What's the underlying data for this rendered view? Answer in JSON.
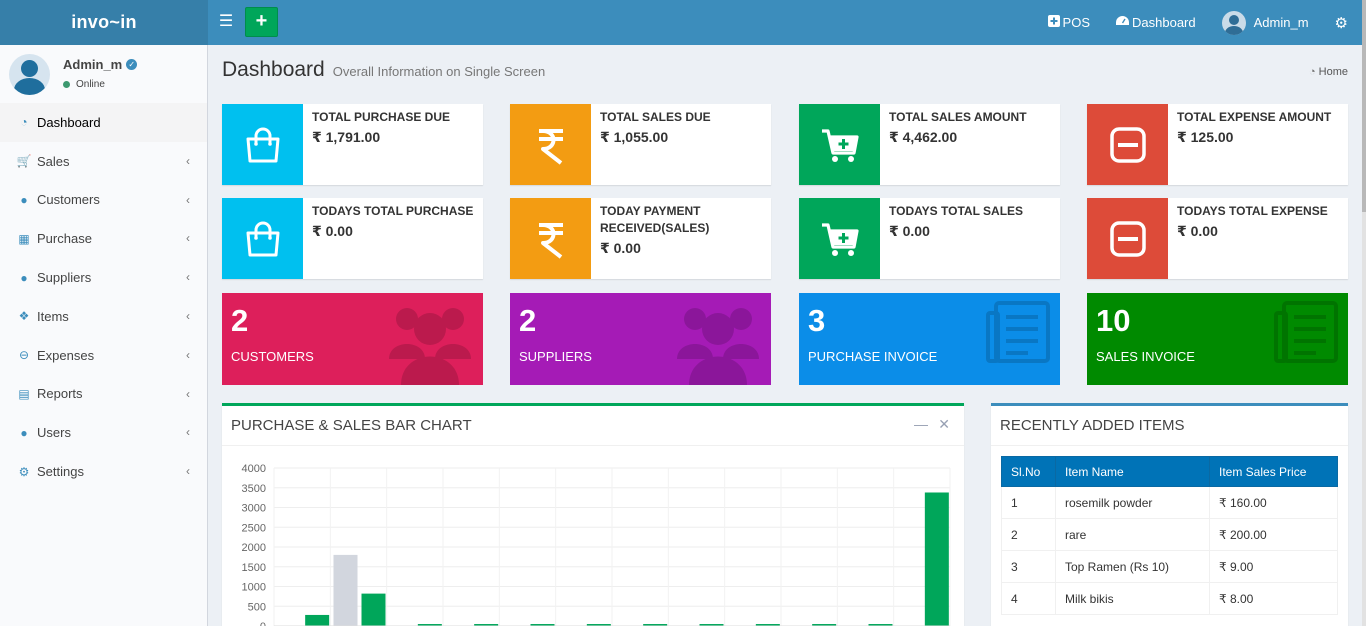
{
  "app": {
    "logo": "invo~in"
  },
  "navbar": {
    "pos_label": "POS",
    "dashboard_label": "Dashboard",
    "user_name": "Admin_m"
  },
  "sidebar": {
    "user_name": "Admin_m",
    "user_status": "Online",
    "items": [
      {
        "label": "Dashboard",
        "icon": "dashboard-icon",
        "active": true
      },
      {
        "label": "Sales",
        "icon": "cart-icon"
      },
      {
        "label": "Customers",
        "icon": "users-icon"
      },
      {
        "label": "Purchase",
        "icon": "grid-icon"
      },
      {
        "label": "Suppliers",
        "icon": "user-plus-icon"
      },
      {
        "label": "Items",
        "icon": "cubes-icon"
      },
      {
        "label": "Expenses",
        "icon": "minus-circle-icon"
      },
      {
        "label": "Reports",
        "icon": "bar-chart-icon"
      },
      {
        "label": "Users",
        "icon": "users-icon"
      },
      {
        "label": "Settings",
        "icon": "gears-icon"
      }
    ]
  },
  "header": {
    "title": "Dashboard",
    "subtitle": "Overall Information on Single Screen",
    "breadcrumb": "Home"
  },
  "info_boxes": [
    {
      "label": "TOTAL PURCHASE DUE",
      "value": "₹ 1,791.00",
      "color": "#00c0ef",
      "icon": "shopping-bag-icon"
    },
    {
      "label": "TOTAL SALES DUE",
      "value": "₹ 1,055.00",
      "color": "#f39c12",
      "icon": "rupee-icon"
    },
    {
      "label": "TOTAL SALES AMOUNT",
      "value": "₹ 4,462.00",
      "color": "#00a65a",
      "icon": "cart-plus-icon"
    },
    {
      "label": "TOTAL EXPENSE AMOUNT",
      "value": "₹ 125.00",
      "color": "#dd4b39",
      "icon": "minus-square-icon"
    },
    {
      "label": "TODAYS TOTAL PURCHASE",
      "value": "₹ 0.00",
      "color": "#00c0ef",
      "icon": "shopping-bag-icon"
    },
    {
      "label": "TODAY PAYMENT RECEIVED(SALES)",
      "value": "₹ 0.00",
      "color": "#f39c12",
      "icon": "rupee-icon"
    },
    {
      "label": "TODAYS TOTAL SALES",
      "value": "₹ 0.00",
      "color": "#00a65a",
      "icon": "cart-plus-icon"
    },
    {
      "label": "TODAYS TOTAL EXPENSE",
      "value": "₹ 0.00",
      "color": "#dd4b39",
      "icon": "minus-square-icon"
    }
  ],
  "small_boxes": [
    {
      "number": "2",
      "label": "CUSTOMERS",
      "color": "#dd1f5b",
      "icon": "users-icon"
    },
    {
      "number": "2",
      "label": "SUPPLIERS",
      "color": "#a51bb6",
      "icon": "users-icon"
    },
    {
      "number": "3",
      "label": "PURCHASE INVOICE",
      "color": "#0b8de8",
      "icon": "document-icon"
    },
    {
      "number": "10",
      "label": "SALES INVOICE",
      "color": "#008a00",
      "icon": "document-icon"
    }
  ],
  "chart_panel": {
    "title": "PURCHASE & SALES BAR CHART"
  },
  "chart_data": {
    "type": "bar",
    "title": "PURCHASE & SALES BAR CHART",
    "ylim": [
      0,
      4000
    ],
    "yticks": [
      0,
      500,
      1000,
      1500,
      2000,
      2500,
      3000,
      3500,
      4000
    ],
    "grid": true,
    "categories": [
      "",
      "",
      "",
      "",
      "",
      "",
      "",
      "",
      "",
      "",
      "",
      ""
    ],
    "series": [
      {
        "color": "#d2d6de",
        "values": [
          0,
          1800,
          10,
          10,
          10,
          10,
          10,
          10,
          10,
          10,
          10,
          10
        ]
      },
      {
        "color": "#00a65a",
        "values": [
          280,
          820,
          50,
          50,
          50,
          50,
          50,
          50,
          50,
          50,
          50,
          3380
        ]
      }
    ]
  },
  "items_panel": {
    "title": "RECENTLY ADDED ITEMS",
    "columns": [
      "Sl.No",
      "Item Name",
      "Item Sales Price"
    ],
    "rows": [
      [
        "1",
        "rosemilk powder",
        "₹ 160.00"
      ],
      [
        "2",
        "rare",
        "₹ 200.00"
      ],
      [
        "3",
        "Top Ramen (Rs 10)",
        "₹ 9.00"
      ],
      [
        "4",
        "Milk bikis",
        "₹ 8.00"
      ]
    ]
  }
}
